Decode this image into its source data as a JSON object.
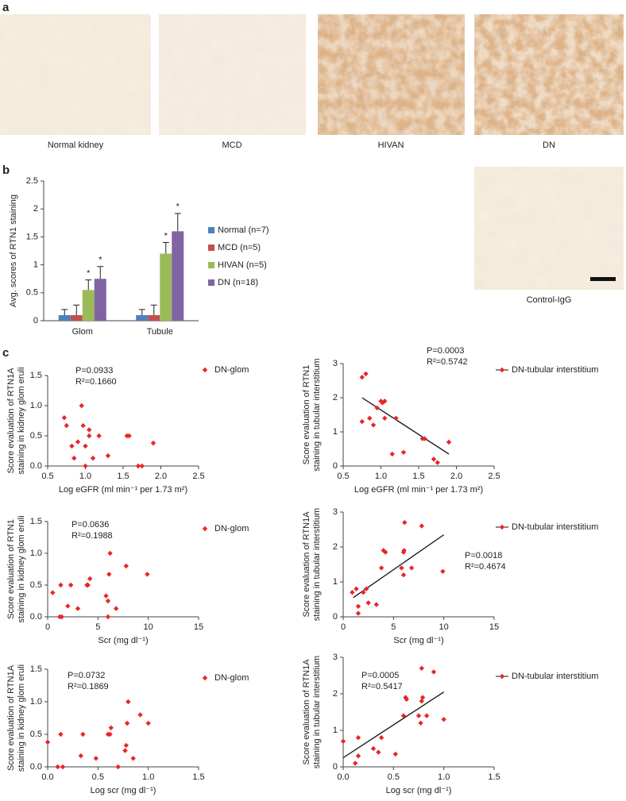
{
  "panel_labels": [
    "a",
    "b",
    "c"
  ],
  "images": [
    {
      "label": "Normal kidney"
    },
    {
      "label": "MCD"
    },
    {
      "label": "HIVAN"
    },
    {
      "label": "DN"
    },
    {
      "label": "Control-IgG"
    }
  ],
  "chart_data": [
    {
      "type": "bar",
      "ylabel": "Avg. scores of RTN1 staining",
      "categories": [
        "Glom",
        "Tubule"
      ],
      "series": [
        {
          "name": "Normal (n=7)",
          "color": "#4f81bd",
          "values": [
            0.1,
            0.1
          ],
          "errors": [
            0.1,
            0.1
          ]
        },
        {
          "name": "MCD (n=5)",
          "color": "#c0504d",
          "values": [
            0.1,
            0.1
          ],
          "errors": [
            0.18,
            0.18
          ]
        },
        {
          "name": "HIVAN (n=5)",
          "color": "#9bbb59",
          "values": [
            0.55,
            1.2
          ],
          "errors": [
            0.18,
            0.2
          ]
        },
        {
          "name": "DN (n=18)",
          "color": "#8064a2",
          "values": [
            0.75,
            1.6
          ],
          "errors": [
            0.22,
            0.32
          ]
        }
      ],
      "annotations": [
        {
          "text": "*",
          "series": 2,
          "category": 0
        },
        {
          "text": "*",
          "series": 3,
          "category": 0
        },
        {
          "text": "*",
          "series": 2,
          "category": 1
        },
        {
          "text": "*",
          "series": 3,
          "category": 1
        }
      ],
      "ylim": [
        0,
        2.5
      ],
      "yticks": [
        0,
        0.5,
        1,
        1.5,
        2,
        2.5
      ]
    },
    {
      "type": "scatter",
      "xlabel": "Log eGFR (ml min⁻¹ per 1.73 m²)",
      "ylabel": [
        "Score evaluation of RTN1A",
        "staining in kidney glom eruli"
      ],
      "stats": [
        "P=0.0933",
        "R²=0.1660"
      ],
      "series": [
        {
          "name": "DN-glom",
          "color": "#e8262a",
          "x": [
            0.72,
            0.75,
            0.82,
            0.85,
            0.9,
            0.95,
            0.97,
            1.0,
            1.0,
            1.05,
            1.05,
            1.1,
            1.18,
            1.3,
            1.55,
            1.58,
            1.7,
            1.75,
            1.9
          ],
          "values": [
            0.8,
            0.67,
            0.33,
            0.13,
            0.4,
            1.0,
            0.67,
            0.0,
            0.33,
            0.6,
            0.5,
            0.13,
            0.5,
            0.17,
            0.5,
            0.5,
            0.0,
            0.0,
            0.38
          ]
        }
      ],
      "xlim": [
        0.5,
        2.5
      ],
      "xticks": [
        0.5,
        {
          "value": 1,
          "label": "1.0"
        },
        1.5,
        {
          "value": 2,
          "label": "2.0"
        },
        2.5
      ],
      "ylim": [
        0,
        1.5
      ],
      "yticks": [
        {
          "value": 0,
          "label": "0.0"
        },
        0.5,
        {
          "value": 1,
          "label": "1.0"
        },
        1.5
      ]
    },
    {
      "type": "scatter",
      "xlabel": "Log eGFR (ml min⁻¹ per 1.73 m²)",
      "ylabel": [
        "Score evaluation of RTN1",
        "staining in tubular interstitium"
      ],
      "stats": [
        "P=0.0003",
        "R²=0.5742"
      ],
      "series": [
        {
          "name": "DN-tubular interstitium",
          "color": "#e8262a",
          "x": [
            0.75,
            0.8,
            0.75,
            0.85,
            0.9,
            0.95,
            1.0,
            1.02,
            1.05,
            1.05,
            1.15,
            1.2,
            1.3,
            1.55,
            1.58,
            1.7,
            1.75,
            1.9
          ],
          "values": [
            2.6,
            2.7,
            1.3,
            1.4,
            1.2,
            1.7,
            1.9,
            1.85,
            1.9,
            1.4,
            0.35,
            1.4,
            0.4,
            0.8,
            0.8,
            0.2,
            0.1,
            0.7
          ]
        }
      ],
      "trendline": {
        "x": [
          0.75,
          1.9
        ],
        "y": [
          2.0,
          0.35
        ]
      },
      "xlim": [
        0.5,
        2.5
      ],
      "xticks": [
        0.5,
        {
          "value": 1,
          "label": "1.0"
        },
        1.5,
        {
          "value": 2,
          "label": "2.0"
        },
        2.5
      ],
      "ylim": [
        0,
        3
      ],
      "yticks": [
        0,
        1,
        2,
        3
      ]
    },
    {
      "type": "scatter",
      "xlabel": "Scr (mg dl⁻¹)",
      "ylabel": [
        "Score evaluation of RTN1",
        "staining in kidney glom eruli"
      ],
      "stats": [
        "P=0.0636",
        "R²=0.1988"
      ],
      "series": [
        {
          "name": "DN-glom",
          "color": "#e8262a",
          "x": [
            0.5,
            1.2,
            1.4,
            1.3,
            2.0,
            2.3,
            3.0,
            4.0,
            4.2,
            3.9,
            5.8,
            6.0,
            6.0,
            6.1,
            6.2,
            6.8,
            7.8,
            9.9
          ],
          "values": [
            0.38,
            0.0,
            0.0,
            0.5,
            0.17,
            0.5,
            0.13,
            0.5,
            0.6,
            0.5,
            0.33,
            0.0,
            0.25,
            0.67,
            1.0,
            0.13,
            0.8,
            0.67
          ]
        }
      ],
      "xlim": [
        0,
        15
      ],
      "xticks": [
        0,
        5,
        10,
        15
      ],
      "ylim": [
        0,
        1.5
      ],
      "yticks": [
        {
          "value": 0,
          "label": "0.0"
        },
        0.5,
        {
          "value": 1,
          "label": "1.0"
        },
        1.5
      ]
    },
    {
      "type": "scatter",
      "xlabel": "Scr (mg dl⁻¹)",
      "ylabel": [
        "Score evaluation of RTN1A",
        "staining in tubular interstitium"
      ],
      "stats": [
        "P=0.0018",
        "R²=0.4674"
      ],
      "series": [
        {
          "name": "DN-tubular interstitium",
          "color": "#e8262a",
          "x": [
            0.9,
            1.3,
            1.5,
            1.5,
            2.0,
            2.3,
            2.5,
            3.3,
            3.8,
            4.0,
            4.2,
            5.8,
            6.0,
            6.0,
            6.1,
            6.05,
            6.8,
            7.8,
            9.9
          ],
          "values": [
            0.7,
            0.8,
            0.1,
            0.3,
            0.7,
            0.8,
            0.4,
            0.35,
            1.4,
            1.9,
            1.85,
            1.4,
            1.85,
            1.2,
            2.7,
            1.9,
            1.4,
            2.6,
            1.3
          ]
        }
      ],
      "trendline": {
        "x": [
          1,
          10
        ],
        "y": [
          0.55,
          2.35
        ]
      },
      "xlim": [
        0,
        15
      ],
      "xticks": [
        0,
        5,
        10,
        15
      ],
      "ylim": [
        0,
        3
      ],
      "yticks": [
        0,
        1,
        2,
        3
      ]
    },
    {
      "type": "scatter",
      "xlabel": "Log scr (mg dl⁻¹)",
      "ylabel": [
        "Score evaluation of RTN1A",
        "staining in kidney glom eruli"
      ],
      "stats": [
        "P=0.0732",
        "R²=0.1869"
      ],
      "series": [
        {
          "name": "DN-glom",
          "color": "#e8262a",
          "x": [
            0.0,
            0.1,
            0.15,
            0.13,
            0.33,
            0.35,
            0.48,
            0.6,
            0.62,
            0.63,
            0.7,
            0.78,
            0.77,
            0.8,
            0.79,
            0.85,
            0.92,
            1.0
          ],
          "values": [
            0.38,
            0.0,
            0.0,
            0.5,
            0.17,
            0.5,
            0.13,
            0.5,
            0.5,
            0.6,
            0.0,
            0.33,
            0.25,
            1.0,
            0.67,
            0.13,
            0.8,
            0.67
          ]
        }
      ],
      "xlim": [
        0,
        1.5
      ],
      "xticks": [
        {
          "value": 0,
          "label": "0.0"
        },
        0.5,
        {
          "value": 1,
          "label": "1.0"
        },
        1.5
      ],
      "ylim": [
        0,
        1.5
      ],
      "yticks": [
        {
          "value": 0,
          "label": "0.0"
        },
        0.5,
        {
          "value": 1,
          "label": "1.0"
        },
        1.5
      ]
    },
    {
      "type": "scatter",
      "xlabel": "Log scr (mg dl⁻¹)",
      "ylabel": [
        "Score evaluation of RTN1A",
        "staining in tubular interstitium"
      ],
      "stats": [
        "P=0.0005",
        "R²=0.5417"
      ],
      "series": [
        {
          "name": "DN-tubular interstitium",
          "color": "#e8262a",
          "x": [
            0.0,
            0.12,
            0.15,
            0.15,
            0.3,
            0.35,
            0.38,
            0.52,
            0.6,
            0.62,
            0.63,
            0.75,
            0.78,
            0.79,
            0.78,
            0.77,
            0.83,
            0.9,
            1.0
          ],
          "values": [
            0.7,
            0.1,
            0.3,
            0.8,
            0.5,
            0.4,
            0.8,
            0.35,
            1.4,
            1.9,
            1.85,
            1.4,
            2.7,
            1.9,
            1.8,
            1.2,
            1.4,
            2.6,
            1.3
          ]
        }
      ],
      "trendline": {
        "x": [
          0,
          1
        ],
        "y": [
          0.25,
          2.05
        ]
      },
      "xlim": [
        0,
        1.5
      ],
      "xticks": [
        {
          "value": 0,
          "label": "0.0"
        },
        0.5,
        {
          "value": 1,
          "label": "1.0"
        },
        1.5
      ],
      "ylim": [
        0,
        3
      ],
      "yticks": [
        0,
        1,
        2,
        3
      ]
    }
  ]
}
